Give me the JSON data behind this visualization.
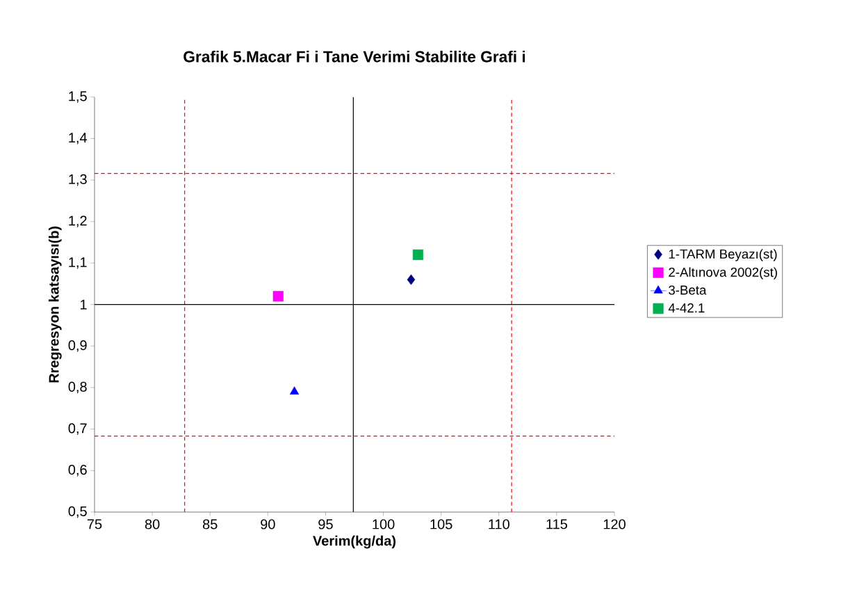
{
  "chart_data": {
    "type": "scatter",
    "title": "Grafik 5.Macar Fi  i Tane Verimi Stabilite Grafi  i",
    "xlabel": "Verim(kg/da)",
    "ylabel": "Rregresyon katsayısı(b)",
    "xlim": [
      75,
      120
    ],
    "xticks": [
      75,
      80,
      85,
      90,
      95,
      100,
      105,
      110,
      115,
      120
    ],
    "ylim": [
      0.5,
      1.5
    ],
    "yticks": [
      {
        "value": 0.5,
        "label": "0,5"
      },
      {
        "value": 0.6,
        "label": "0,6"
      },
      {
        "value": 0.7,
        "label": "0,7"
      },
      {
        "value": 0.8,
        "label": "0,8"
      },
      {
        "value": 0.9,
        "label": "0,9"
      },
      1,
      {
        "value": 1.1,
        "label": "1,1"
      },
      {
        "value": 1.2,
        "label": "1,2"
      },
      {
        "value": 1.3,
        "label": "1,3"
      },
      {
        "value": 1.4,
        "label": "1,4"
      },
      {
        "value": 1.5,
        "label": "1,5"
      }
    ],
    "grid": false,
    "legend": "right",
    "series": [
      {
        "name": "1-TARM Beyazı(st)",
        "color": "#000080",
        "marker": "diamond",
        "x": [
          102.4
        ],
        "values": [
          1.06
        ]
      },
      {
        "name": "2-Altınova 2002(st)",
        "color": "#ff00ff",
        "marker": "square",
        "x": [
          90.9
        ],
        "values": [
          1.02
        ]
      },
      {
        "name": "3-Beta",
        "color": "#0000ff",
        "marker": "triangle",
        "line_style": "solid",
        "x": [
          92.3
        ],
        "values": [
          0.79
        ]
      },
      {
        "name": "4-42.1",
        "color": "#00b050",
        "marker": "square",
        "x": [
          103.0
        ],
        "values": [
          1.12
        ]
      }
    ],
    "ref_lines": [
      {
        "axis": "x",
        "value": 82.8,
        "color": "#ff0000",
        "line_style": "dashed"
      },
      {
        "axis": "x",
        "value": 111.1,
        "color": "#ff0000",
        "line_style": "dashed"
      },
      {
        "axis": "y",
        "value": 1.316,
        "color": "#ff0000",
        "line_style": "dashed"
      },
      {
        "axis": "y",
        "value": 0.683,
        "color": "#ff0000",
        "line_style": "dashed"
      },
      {
        "axis": "x",
        "value": 97.4,
        "color": "#000000",
        "line_style": "solid"
      },
      {
        "axis": "y",
        "value": 1,
        "color": "#000000",
        "line_style": "solid"
      }
    ]
  }
}
